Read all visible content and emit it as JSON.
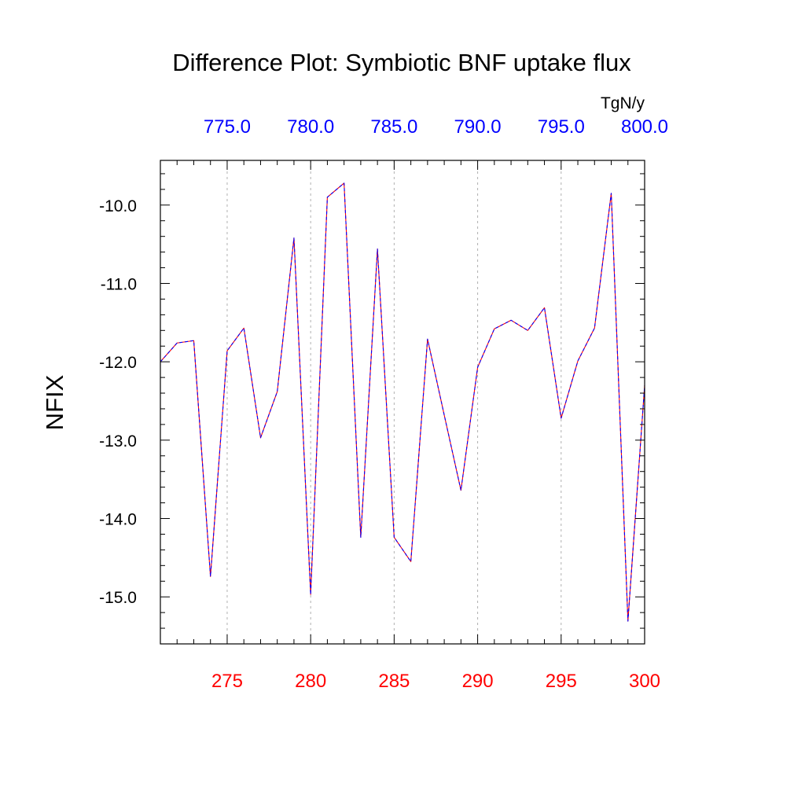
{
  "chart_data": {
    "type": "line",
    "title": "Difference Plot: Symbiotic BNF uptake flux",
    "ylabel": "NFIX",
    "units": "TgN/y",
    "x_bottom": {
      "range": [
        271,
        300
      ],
      "tick_values": [
        275,
        280,
        285,
        290,
        295,
        300
      ],
      "tick_labels": [
        "275",
        "280",
        "285",
        "290",
        "295",
        "300"
      ],
      "color": "#ff0000"
    },
    "x_top": {
      "range": [
        771,
        800
      ],
      "tick_values": [
        775,
        780,
        785,
        790,
        795,
        800
      ],
      "tick_labels": [
        "775.0",
        "780.0",
        "785.0",
        "790.0",
        "795.0",
        "800.0"
      ],
      "color": "#0000ff"
    },
    "y": {
      "range": [
        -15.6,
        -9.43
      ],
      "tick_values": [
        -10,
        -11,
        -12,
        -13,
        -14,
        -15
      ],
      "tick_labels": [
        "-10.0",
        "-11.0",
        "-12.0",
        "-13.0",
        "-14.0",
        "-15.0"
      ]
    },
    "grid": "vertical dashed at major x ticks",
    "series": [
      {
        "color": "#ff0000",
        "x": [
          271,
          272,
          273,
          274,
          275,
          276,
          277,
          278,
          279,
          280,
          281,
          282,
          283,
          284,
          285,
          286,
          287,
          288,
          289,
          290,
          291,
          292,
          293,
          294,
          295,
          296,
          297,
          298,
          299,
          300
        ],
        "values": [
          -12.0,
          -11.76,
          -11.73,
          -14.74,
          -11.86,
          -11.57,
          -12.97,
          -12.38,
          -10.42,
          -14.97,
          -9.9,
          -9.72,
          -14.24,
          -10.56,
          -14.24,
          -14.55,
          -11.71,
          -12.68,
          -13.64,
          -12.07,
          -11.58,
          -11.47,
          -11.6,
          -11.31,
          -12.72,
          -11.99,
          -11.57,
          -9.85,
          -15.31,
          -12.3
        ]
      },
      {
        "color": "#0000ff",
        "x": [
          771,
          772,
          773,
          774,
          775,
          776,
          777,
          778,
          779,
          780,
          781,
          782,
          783,
          784,
          785,
          786,
          787,
          788,
          789,
          790,
          791,
          792,
          793,
          794,
          795,
          796,
          797,
          798,
          799,
          800
        ],
        "values": [
          -12.0,
          -11.76,
          -11.73,
          -14.74,
          -11.86,
          -11.57,
          -12.97,
          -12.38,
          -10.42,
          -14.97,
          -9.9,
          -9.72,
          -14.24,
          -10.56,
          -14.24,
          -14.55,
          -11.71,
          -12.68,
          -13.64,
          -12.07,
          -11.58,
          -11.47,
          -11.6,
          -11.31,
          -12.72,
          -11.99,
          -11.57,
          -9.85,
          -15.31,
          -12.3
        ]
      }
    ]
  }
}
